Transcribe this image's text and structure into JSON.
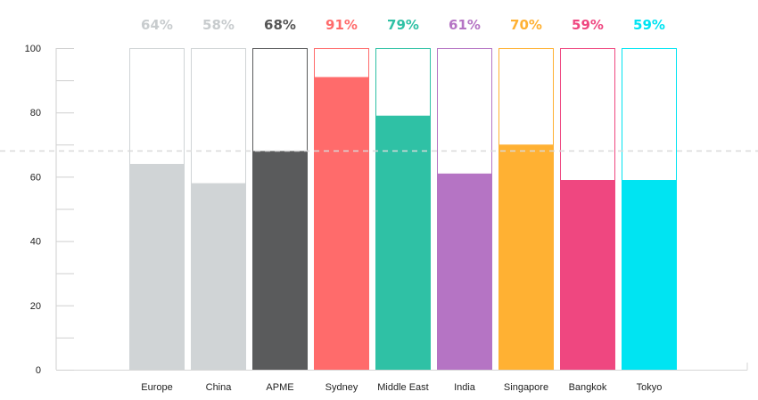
{
  "chart_data": {
    "type": "bar",
    "categories": [
      "Europe",
      "China",
      "APME",
      "Sydney",
      "Middle East",
      "India",
      "Singapore",
      "Bangkok",
      "Tokyo"
    ],
    "values": [
      64,
      58,
      68,
      91,
      79,
      61,
      70,
      59,
      59
    ],
    "value_labels": [
      "64%",
      "58%",
      "68%",
      "91%",
      "79%",
      "61%",
      "70%",
      "59%",
      "59%"
    ],
    "colors": [
      "#d0d4d6",
      "#d0d4d6",
      "#5a5b5c",
      "#ff6b6b",
      "#2fc1a5",
      "#b574c4",
      "#ffb133",
      "#ef4780",
      "#00e4f2"
    ],
    "label_colors": [
      "#c8ccce",
      "#c8ccce",
      "#555555",
      "#ff6b6b",
      "#2fc1a5",
      "#b574c4",
      "#ffb133",
      "#ef4780",
      "#00e4f2"
    ],
    "ylim": [
      0,
      100
    ],
    "yticks": [
      "0",
      "20",
      "40",
      "60",
      "80",
      "100"
    ],
    "reference_line": 68,
    "grid": false,
    "xlabel": "",
    "ylabel": "",
    "title": ""
  }
}
